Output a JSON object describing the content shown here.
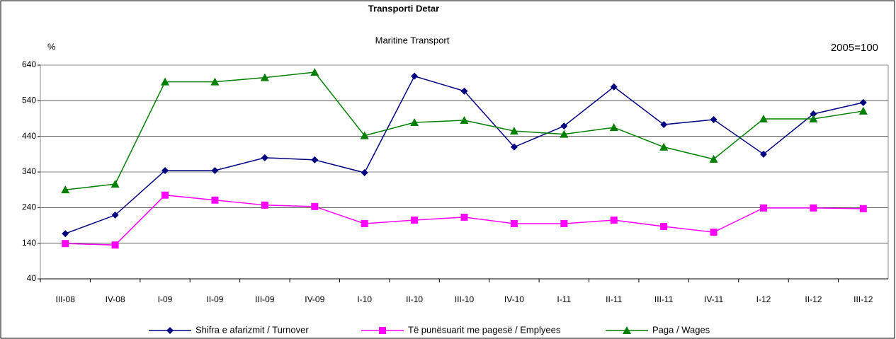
{
  "chart_data": {
    "type": "line",
    "title": "Transporti Detar",
    "subtitle": "Maritine Transport",
    "y_label": "%",
    "annotation": "2005=100",
    "categories": [
      "III-08",
      "IV-08",
      "I-09",
      "II-09",
      "III-09",
      "IV-09",
      "I-10",
      "II-10",
      "III-10",
      "IV-10",
      "I-11",
      "II-11",
      "III-11",
      "IV-11",
      "I-12",
      "II-12",
      "III-12"
    ],
    "series": [
      {
        "name": "Shifra e afarizmit / Turnover",
        "color": "#000080",
        "marker": "diamond",
        "values": [
          167,
          219,
          344,
          344,
          380,
          374,
          338,
          609,
          567,
          410,
          469,
          579,
          473,
          487,
          390,
          503,
          535
        ]
      },
      {
        "name": "Të punësuarit me pagesë / Emplyees",
        "color": "#ff00ff",
        "marker": "square",
        "values": [
          139,
          135,
          275,
          261,
          247,
          243,
          195,
          205,
          213,
          195,
          195,
          205,
          187,
          171,
          239,
          239,
          237
        ]
      },
      {
        "name": "Paga / Wages",
        "color": "#008000",
        "marker": "triangle",
        "values": [
          290,
          306,
          593,
          593,
          605,
          620,
          442,
          479,
          485,
          455,
          446,
          465,
          410,
          376,
          489,
          489,
          511
        ]
      }
    ],
    "ylim": [
      40,
      640
    ],
    "yticks": [
      40,
      140,
      240,
      340,
      440,
      540,
      640
    ],
    "grid": true,
    "legend": "bottom"
  }
}
